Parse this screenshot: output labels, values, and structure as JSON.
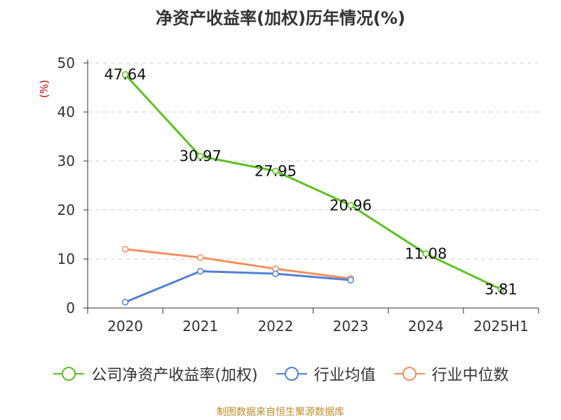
{
  "chart_data": {
    "type": "line",
    "title": "净资产收益率(加权)历年情况(%)",
    "ylabel": "(%)",
    "categories": [
      "2020",
      "2021",
      "2022",
      "2023",
      "2024",
      "2025H1"
    ],
    "ylim": [
      0,
      50
    ],
    "yticks": [
      0,
      10,
      20,
      30,
      40,
      50
    ],
    "grid": true,
    "legend_position": "bottom",
    "series": [
      {
        "name": "公司净资产收益率(加权)",
        "color": "#5cc11e",
        "values": [
          47.64,
          30.97,
          27.95,
          20.96,
          11.08,
          3.81
        ],
        "labels": [
          "47.64",
          "30.97",
          "27.95",
          "20.96",
          "11.08",
          "3.81"
        ]
      },
      {
        "name": "行业均值",
        "color": "#4f81d9",
        "values": [
          1.2,
          7.5,
          7.0,
          5.7,
          null,
          null
        ]
      },
      {
        "name": "行业中位数",
        "color": "#f4905e",
        "values": [
          12.0,
          10.3,
          8.0,
          6.0,
          null,
          null
        ]
      }
    ]
  },
  "source": "制图数据来自恒生聚源数据库"
}
